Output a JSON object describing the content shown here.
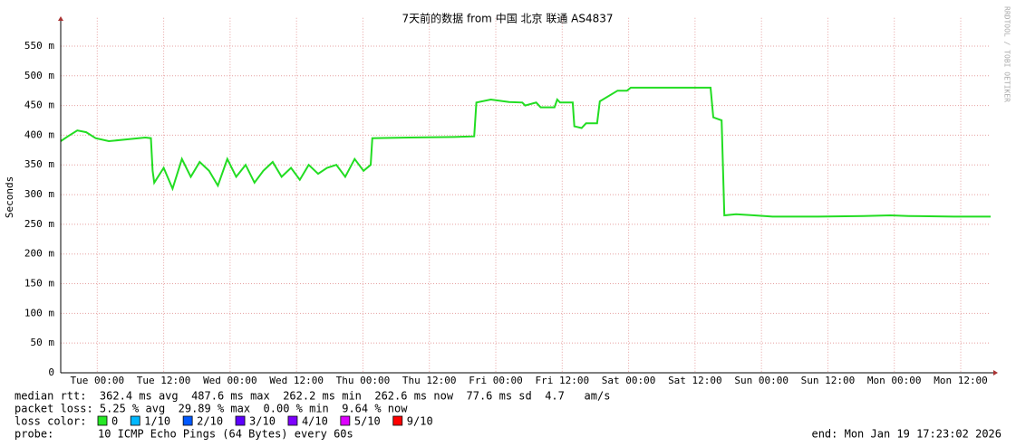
{
  "chart_data": {
    "type": "line",
    "title": "7天前的数据 from 中国 北京 联通 AS4837",
    "ylabel": "Seconds",
    "side_note": "RRDTOOL / TOBI OETIKER",
    "color": "#22dd22",
    "x": [
      -6.6,
      -5.3,
      -3.6,
      -2.0,
      -0.3,
      2.1,
      5.4,
      8.7,
      9.7,
      10.0,
      10.3,
      12.0,
      13.6,
      15.3,
      16.9,
      18.5,
      20.2,
      21.8,
      23.5,
      25.1,
      26.8,
      28.4,
      30.0,
      31.7,
      33.3,
      35.0,
      36.6,
      38.2,
      39.9,
      41.5,
      43.2,
      44.8,
      46.5,
      48.1,
      49.4,
      49.7,
      56.3,
      64.5,
      68.1,
      68.5,
      71.1,
      74.4,
      76.8,
      77.3,
      79.3,
      80.1,
      82.6,
      83.1,
      83.6,
      85.9,
      86.2,
      87.5,
      88.3,
      90.3,
      90.8,
      94.0,
      95.7,
      96.4,
      100.6,
      107.2,
      110.8,
      111.3,
      112.8,
      113.3,
      115.4,
      118.7,
      122.0,
      130.2,
      138.4,
      143.3,
      146.6,
      154.8,
      161.4
    ],
    "values": [
      390,
      398,
      408,
      405,
      395,
      390,
      393,
      396,
      395,
      340,
      320,
      345,
      310,
      360,
      330,
      355,
      340,
      315,
      360,
      330,
      350,
      320,
      340,
      355,
      330,
      345,
      325,
      350,
      335,
      345,
      350,
      330,
      360,
      340,
      350,
      395,
      396,
      397,
      398,
      455,
      460,
      456,
      455,
      450,
      455,
      447,
      447,
      460,
      455,
      455,
      415,
      412,
      420,
      420,
      457,
      475,
      475,
      480,
      480,
      480,
      480,
      430,
      425,
      265,
      267,
      265,
      263,
      263,
      264,
      265,
      264,
      263,
      263
    ],
    "xlim": [
      -6.6,
      161.4
    ],
    "xticks": [
      {
        "value": 0,
        "label": "Tue 00:00"
      },
      {
        "value": 12,
        "label": "Tue 12:00"
      },
      {
        "value": 24,
        "label": "Wed 00:00"
      },
      {
        "value": 36,
        "label": "Wed 12:00"
      },
      {
        "value": 48,
        "label": "Thu 00:00"
      },
      {
        "value": 60,
        "label": "Thu 12:00"
      },
      {
        "value": 72,
        "label": "Fri 00:00"
      },
      {
        "value": 84,
        "label": "Fri 12:00"
      },
      {
        "value": 96,
        "label": "Sat 00:00"
      },
      {
        "value": 108,
        "label": "Sat 12:00"
      },
      {
        "value": 120,
        "label": "Sun 00:00"
      },
      {
        "value": 132,
        "label": "Sun 12:00"
      },
      {
        "value": 144,
        "label": "Mon 00:00"
      },
      {
        "value": 156,
        "label": "Mon 12:00"
      }
    ],
    "ylim": [
      0,
      590
    ],
    "yticks": [
      0,
      {
        "value": 50,
        "label": "50 m"
      },
      {
        "value": 100,
        "label": "100 m"
      },
      {
        "value": 150,
        "label": "150 m"
      },
      {
        "value": 200,
        "label": "200 m"
      },
      {
        "value": 250,
        "label": "250 m"
      },
      {
        "value": 300,
        "label": "300 m"
      },
      {
        "value": 350,
        "label": "350 m"
      },
      {
        "value": 400,
        "label": "400 m"
      },
      {
        "value": 450,
        "label": "450 m"
      },
      {
        "value": 500,
        "label": "500 m"
      },
      {
        "value": 550,
        "label": "550 m"
      }
    ],
    "grid": true,
    "stats": [
      "median rtt:  362.4 ms avg  487.6 ms max  262.2 ms min  262.6 ms now  77.6 ms sd  4.7   am/s",
      "packet loss: 5.25 % avg  29.89 % max  0.00 % min  9.64 % now"
    ],
    "legend_title": "loss color:",
    "legend": [
      {
        "label": "0",
        "color": "#26e826"
      },
      {
        "label": "1/10",
        "color": "#00b8ff"
      },
      {
        "label": "2/10",
        "color": "#0059ff"
      },
      {
        "label": "3/10",
        "color": "#5e00ff"
      },
      {
        "label": "4/10",
        "color": "#7e00ff"
      },
      {
        "label": "5/10",
        "color": "#dd00ff"
      },
      {
        "label": "9/10",
        "color": "#ff0000"
      }
    ],
    "probe_label": "probe:",
    "probe": "10 ICMP Echo Pings (64 Bytes) every 60s",
    "end": "end: Mon Jan 19 17:23:02 2026"
  }
}
